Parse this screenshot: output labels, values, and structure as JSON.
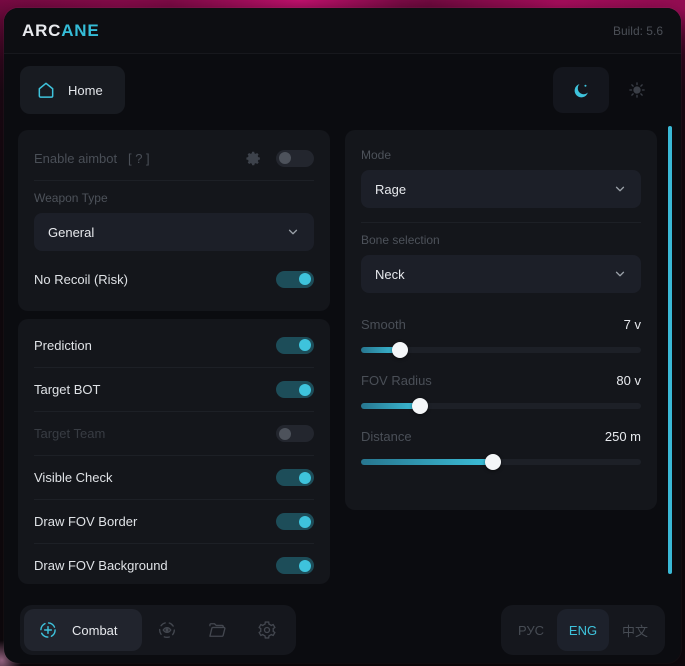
{
  "accent_color": "#3ec3dc",
  "header": {
    "brand_prefix": "ARC",
    "brand_suffix": "ANE",
    "build": "Build: 5.6"
  },
  "nav": {
    "home_label": "Home"
  },
  "aimbot_card": {
    "enable_label": "Enable aimbot",
    "enable_hint": "[ ? ]",
    "weapon_type_label": "Weapon Type",
    "weapon_type_value": "General",
    "no_recoil_label": "No Recoil (Risk)"
  },
  "toggle_card": {
    "rows": [
      {
        "label": "Prediction",
        "state": "on"
      },
      {
        "label": "Target BOT",
        "state": "on"
      },
      {
        "label": "Target Team",
        "state": "off"
      },
      {
        "label": "Visible Check",
        "state": "on"
      },
      {
        "label": "Draw FOV Border",
        "state": "on"
      },
      {
        "label": "Draw FOV Background",
        "state": "on"
      }
    ]
  },
  "mode_card": {
    "mode_label": "Mode",
    "mode_value": "Rage",
    "bone_label": "Bone selection",
    "bone_value": "Neck",
    "sliders": [
      {
        "label": "Smooth",
        "value": "7 v",
        "percent": 14
      },
      {
        "label": "FOV Radius",
        "value": "80 v",
        "percent": 21
      },
      {
        "label": "Distance",
        "value": "250 m",
        "percent": 47
      }
    ]
  },
  "footer": {
    "combat_label": "Combat",
    "languages": [
      {
        "label": "РУС",
        "active": false
      },
      {
        "label": "ENG",
        "active": true
      },
      {
        "label": "中文",
        "active": false
      }
    ]
  }
}
